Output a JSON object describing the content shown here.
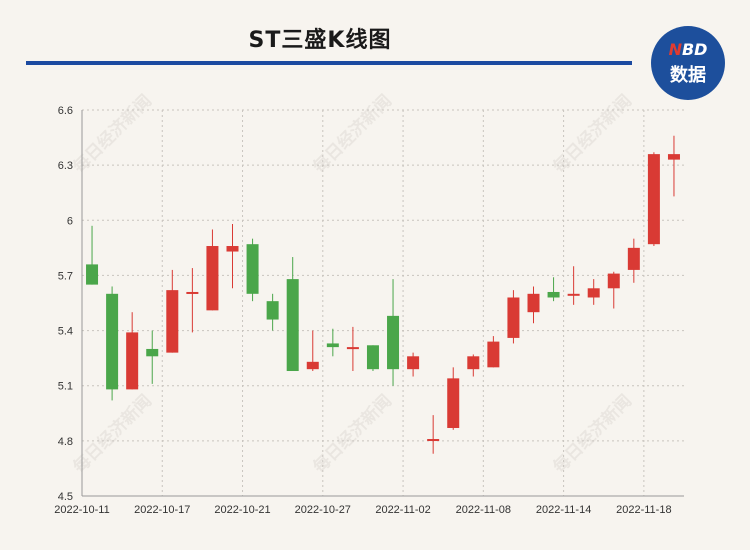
{
  "title": "ST三盛K线图",
  "logo": {
    "line1_n": "N",
    "line1_rest": "BD",
    "line2": "数据"
  },
  "watermark": "每日经济新闻",
  "colors": {
    "up": "#d93a34",
    "down": "#4aa64a",
    "title_rule": "#1c4aa0",
    "logo_bg": "#1d4f9c"
  },
  "chart_data": {
    "type": "candlestick",
    "title": "ST三盛K线图",
    "ylim": [
      4.5,
      6.6
    ],
    "yticks": [
      {
        "v": 4.5,
        "label": "4.5"
      },
      {
        "v": 4.8,
        "label": "4.8"
      },
      {
        "v": 5.1,
        "label": "5.1"
      },
      {
        "v": 5.4,
        "label": "5.4"
      },
      {
        "v": 5.7,
        "label": "5.7"
      },
      {
        "v": 6.0,
        "label": "6"
      },
      {
        "v": 6.3,
        "label": "6.3"
      },
      {
        "v": 6.6,
        "label": "6.6"
      }
    ],
    "xtick_labels": [
      "2022-10-11",
      "2022-10-17",
      "2022-10-21",
      "2022-10-27",
      "2022-11-02",
      "2022-11-08",
      "2022-11-14",
      "2022-11-18"
    ],
    "grid": true,
    "candles": [
      {
        "o": 5.76,
        "c": 5.65,
        "h": 5.97,
        "l": 5.65
      },
      {
        "o": 5.6,
        "c": 5.08,
        "h": 5.64,
        "l": 5.02
      },
      {
        "o": 5.08,
        "c": 5.39,
        "h": 5.5,
        "l": 5.08
      },
      {
        "o": 5.3,
        "c": 5.26,
        "h": 5.4,
        "l": 5.11
      },
      {
        "o": 5.28,
        "c": 5.62,
        "h": 5.73,
        "l": 5.28
      },
      {
        "o": 5.6,
        "c": 5.61,
        "h": 5.74,
        "l": 5.39
      },
      {
        "o": 5.51,
        "c": 5.86,
        "h": 5.95,
        "l": 5.51
      },
      {
        "o": 5.83,
        "c": 5.86,
        "h": 5.98,
        "l": 5.63
      },
      {
        "o": 5.87,
        "c": 5.6,
        "h": 5.9,
        "l": 5.56
      },
      {
        "o": 5.56,
        "c": 5.46,
        "h": 5.6,
        "l": 5.4
      },
      {
        "o": 5.68,
        "c": 5.18,
        "h": 5.8,
        "l": 5.18
      },
      {
        "o": 5.19,
        "c": 5.23,
        "h": 5.4,
        "l": 5.18
      },
      {
        "o": 5.33,
        "c": 5.31,
        "h": 5.41,
        "l": 5.26
      },
      {
        "o": 5.3,
        "c": 5.31,
        "h": 5.42,
        "l": 5.18
      },
      {
        "o": 5.32,
        "c": 5.19,
        "h": 5.32,
        "l": 5.18
      },
      {
        "o": 5.48,
        "c": 5.19,
        "h": 5.68,
        "l": 5.1
      },
      {
        "o": 5.19,
        "c": 5.26,
        "h": 5.28,
        "l": 5.15
      },
      {
        "o": 4.8,
        "c": 4.81,
        "h": 4.94,
        "l": 4.73
      },
      {
        "o": 4.87,
        "c": 5.14,
        "h": 5.2,
        "l": 4.86
      },
      {
        "o": 5.19,
        "c": 5.26,
        "h": 5.27,
        "l": 5.15
      },
      {
        "o": 5.2,
        "c": 5.34,
        "h": 5.37,
        "l": 5.2
      },
      {
        "o": 5.36,
        "c": 5.58,
        "h": 5.62,
        "l": 5.33
      },
      {
        "o": 5.5,
        "c": 5.6,
        "h": 5.64,
        "l": 5.44
      },
      {
        "o": 5.61,
        "c": 5.58,
        "h": 5.69,
        "l": 5.56
      },
      {
        "o": 5.59,
        "c": 5.6,
        "h": 5.75,
        "l": 5.54
      },
      {
        "o": 5.58,
        "c": 5.63,
        "h": 5.68,
        "l": 5.54
      },
      {
        "o": 5.63,
        "c": 5.71,
        "h": 5.72,
        "l": 5.52
      },
      {
        "o": 5.73,
        "c": 5.85,
        "h": 5.9,
        "l": 5.66
      },
      {
        "o": 5.87,
        "c": 6.36,
        "h": 6.37,
        "l": 5.86
      },
      {
        "o": 6.33,
        "c": 6.36,
        "h": 6.46,
        "l": 6.13
      }
    ]
  }
}
